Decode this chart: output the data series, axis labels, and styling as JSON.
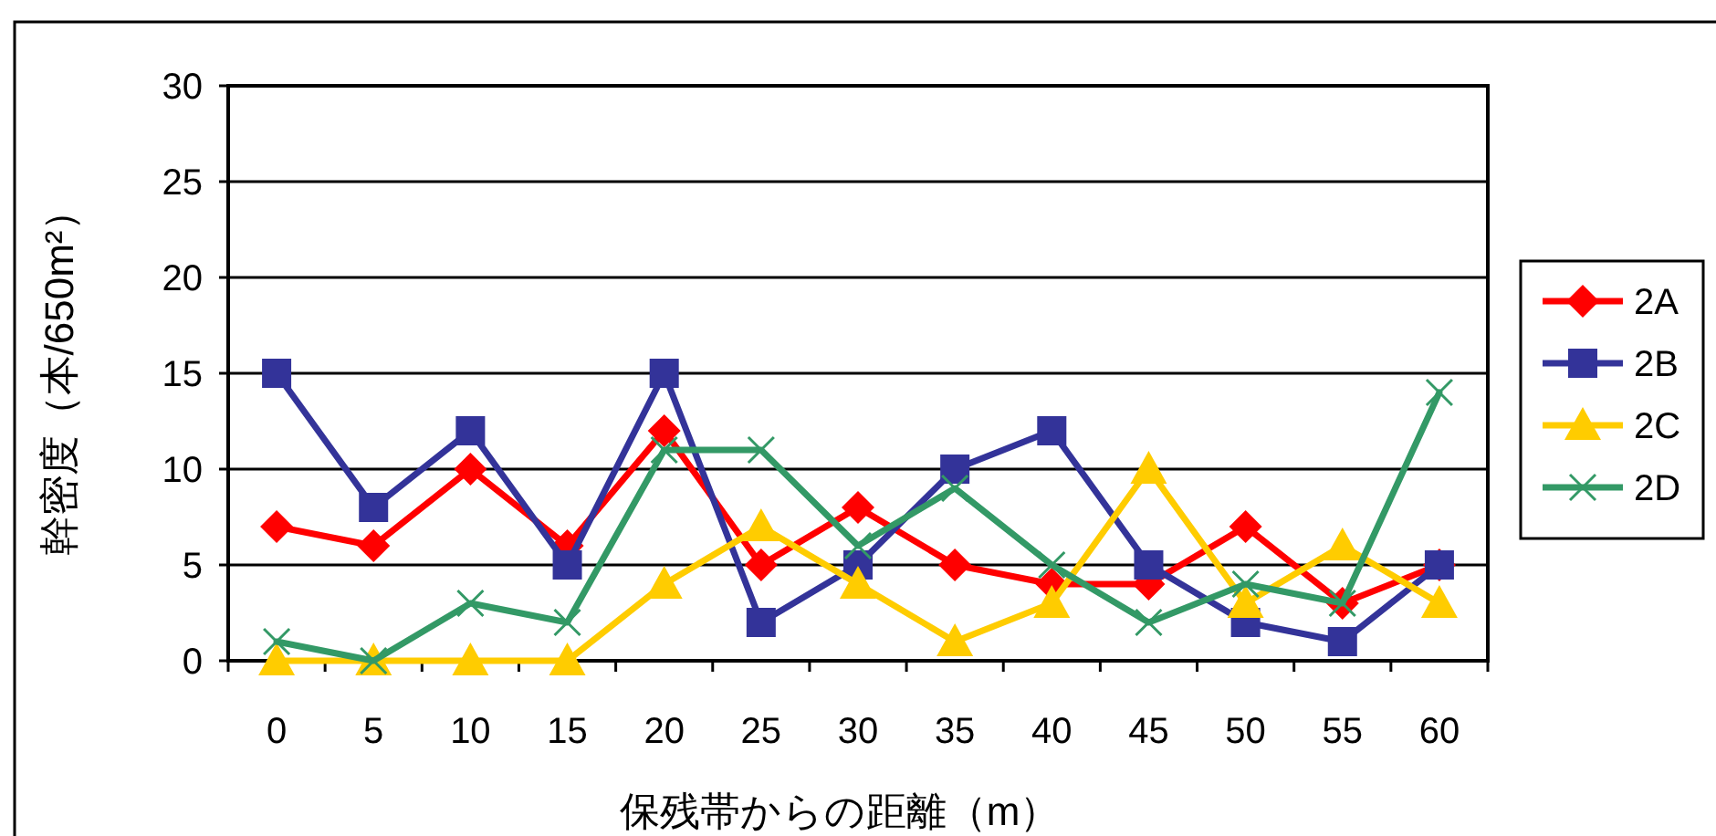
{
  "chart_data": {
    "type": "line",
    "xlabel": "保残帯からの距離（m）",
    "ylabel": "幹密度（本/650m²）",
    "categories": [
      "0",
      "5",
      "10",
      "15",
      "20",
      "25",
      "30",
      "35",
      "40",
      "45",
      "50",
      "55",
      "60"
    ],
    "ylim": [
      0,
      30
    ],
    "yticks": [
      0,
      5,
      10,
      15,
      20,
      25,
      30
    ],
    "grid": "y",
    "legend": "right",
    "series": [
      {
        "name": "2A",
        "color": "#ff0000",
        "marker": "diamond",
        "values": [
          7,
          6,
          10,
          6,
          12,
          5,
          8,
          5,
          4,
          4,
          7,
          3,
          5
        ]
      },
      {
        "name": "2B",
        "color": "#333399",
        "marker": "square",
        "values": [
          15,
          8,
          12,
          5,
          15,
          2,
          5,
          10,
          12,
          5,
          2,
          1,
          5
        ]
      },
      {
        "name": "2C",
        "color": "#ffcc00",
        "marker": "triangle",
        "values": [
          0,
          0,
          0,
          0,
          4,
          7,
          4,
          1,
          3,
          10,
          3,
          6,
          3
        ]
      },
      {
        "name": "2D",
        "color": "#339966",
        "marker": "cross",
        "values": [
          1,
          0,
          3,
          2,
          11,
          11,
          6,
          9,
          5,
          2,
          4,
          3,
          14
        ]
      }
    ]
  }
}
